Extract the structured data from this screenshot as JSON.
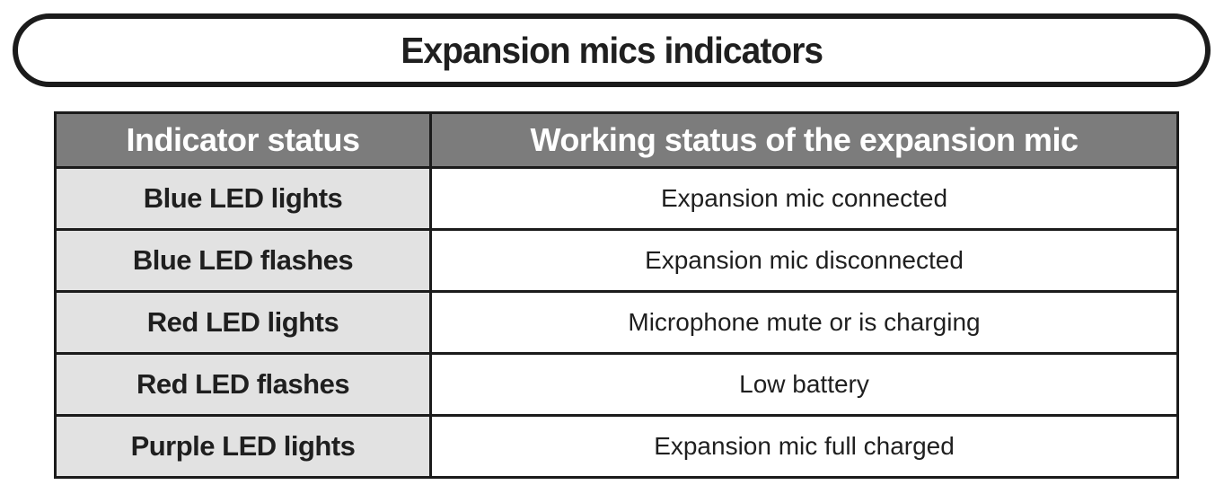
{
  "banner": {
    "title": "Expansion mics indicators"
  },
  "table": {
    "headers": [
      "Indicator status",
      "Working status of the expansion mic"
    ],
    "rows": [
      {
        "indicator": "Blue LED lights",
        "status": "Expansion mic connected"
      },
      {
        "indicator": "Blue LED flashes",
        "status": "Expansion mic disconnected"
      },
      {
        "indicator": "Red LED lights",
        "status": "Microphone mute or is charging"
      },
      {
        "indicator": "Red LED flashes",
        "status": "Low battery"
      },
      {
        "indicator": "Purple LED lights",
        "status": "Expansion mic full charged"
      }
    ]
  },
  "colors": {
    "header_bg": "#7c7c7c",
    "header_text": "#ffffff",
    "label_cell_bg": "#e2e2e2",
    "value_cell_bg": "#ffffff",
    "border": "#1b1b1b",
    "text": "#1f1f1f"
  }
}
